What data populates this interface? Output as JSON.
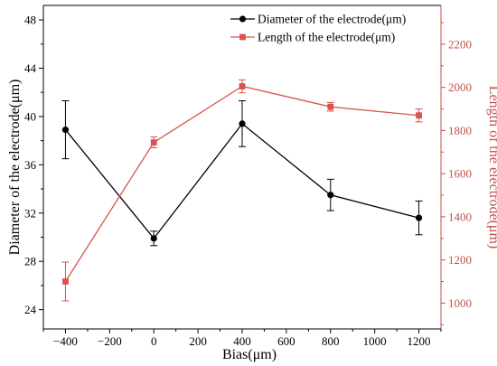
{
  "chart_data": {
    "type": "line",
    "xlabel": "Bias(μm)",
    "ylabel_left": "Diameter of the electrode(μm)",
    "ylabel_right": "Length of the electrode(μm)",
    "xlim": [
      -500,
      1300
    ],
    "ylim_left": [
      22.4,
      49.2
    ],
    "ylim_right": [
      880,
      2380
    ],
    "x_ticks": [
      -400,
      -200,
      0,
      200,
      400,
      600,
      800,
      1000,
      1200
    ],
    "x_tick_labels": [
      "−400",
      "−200",
      "0",
      "200",
      "400",
      "600",
      "800",
      "1000",
      "1200"
    ],
    "left_ticks": [
      24,
      28,
      32,
      36,
      40,
      44,
      48
    ],
    "right_ticks": [
      1000,
      1200,
      1400,
      1600,
      1800,
      2000,
      2200
    ],
    "grid": false,
    "legend_position": "top-right",
    "colors": {
      "left_axis": "#000000",
      "right_axis": "#c0504d",
      "diameter": "#000000",
      "length": "#d9534f"
    },
    "series": [
      {
        "name": "Diameter of the electrode(μm)",
        "axis": "left",
        "marker": "circle",
        "x": [
          -400,
          0,
          400,
          800,
          1200
        ],
        "y": [
          38.9,
          29.9,
          39.4,
          33.5,
          31.6
        ],
        "err": [
          2.4,
          0.6,
          1.9,
          1.3,
          1.4
        ]
      },
      {
        "name": "Length of the electrode(μm)",
        "axis": "right",
        "marker": "square",
        "x": [
          -400,
          0,
          400,
          800,
          1200
        ],
        "y": [
          1100,
          1745,
          2005,
          1910,
          1870
        ],
        "err": [
          90,
          25,
          30,
          20,
          30
        ]
      }
    ]
  }
}
